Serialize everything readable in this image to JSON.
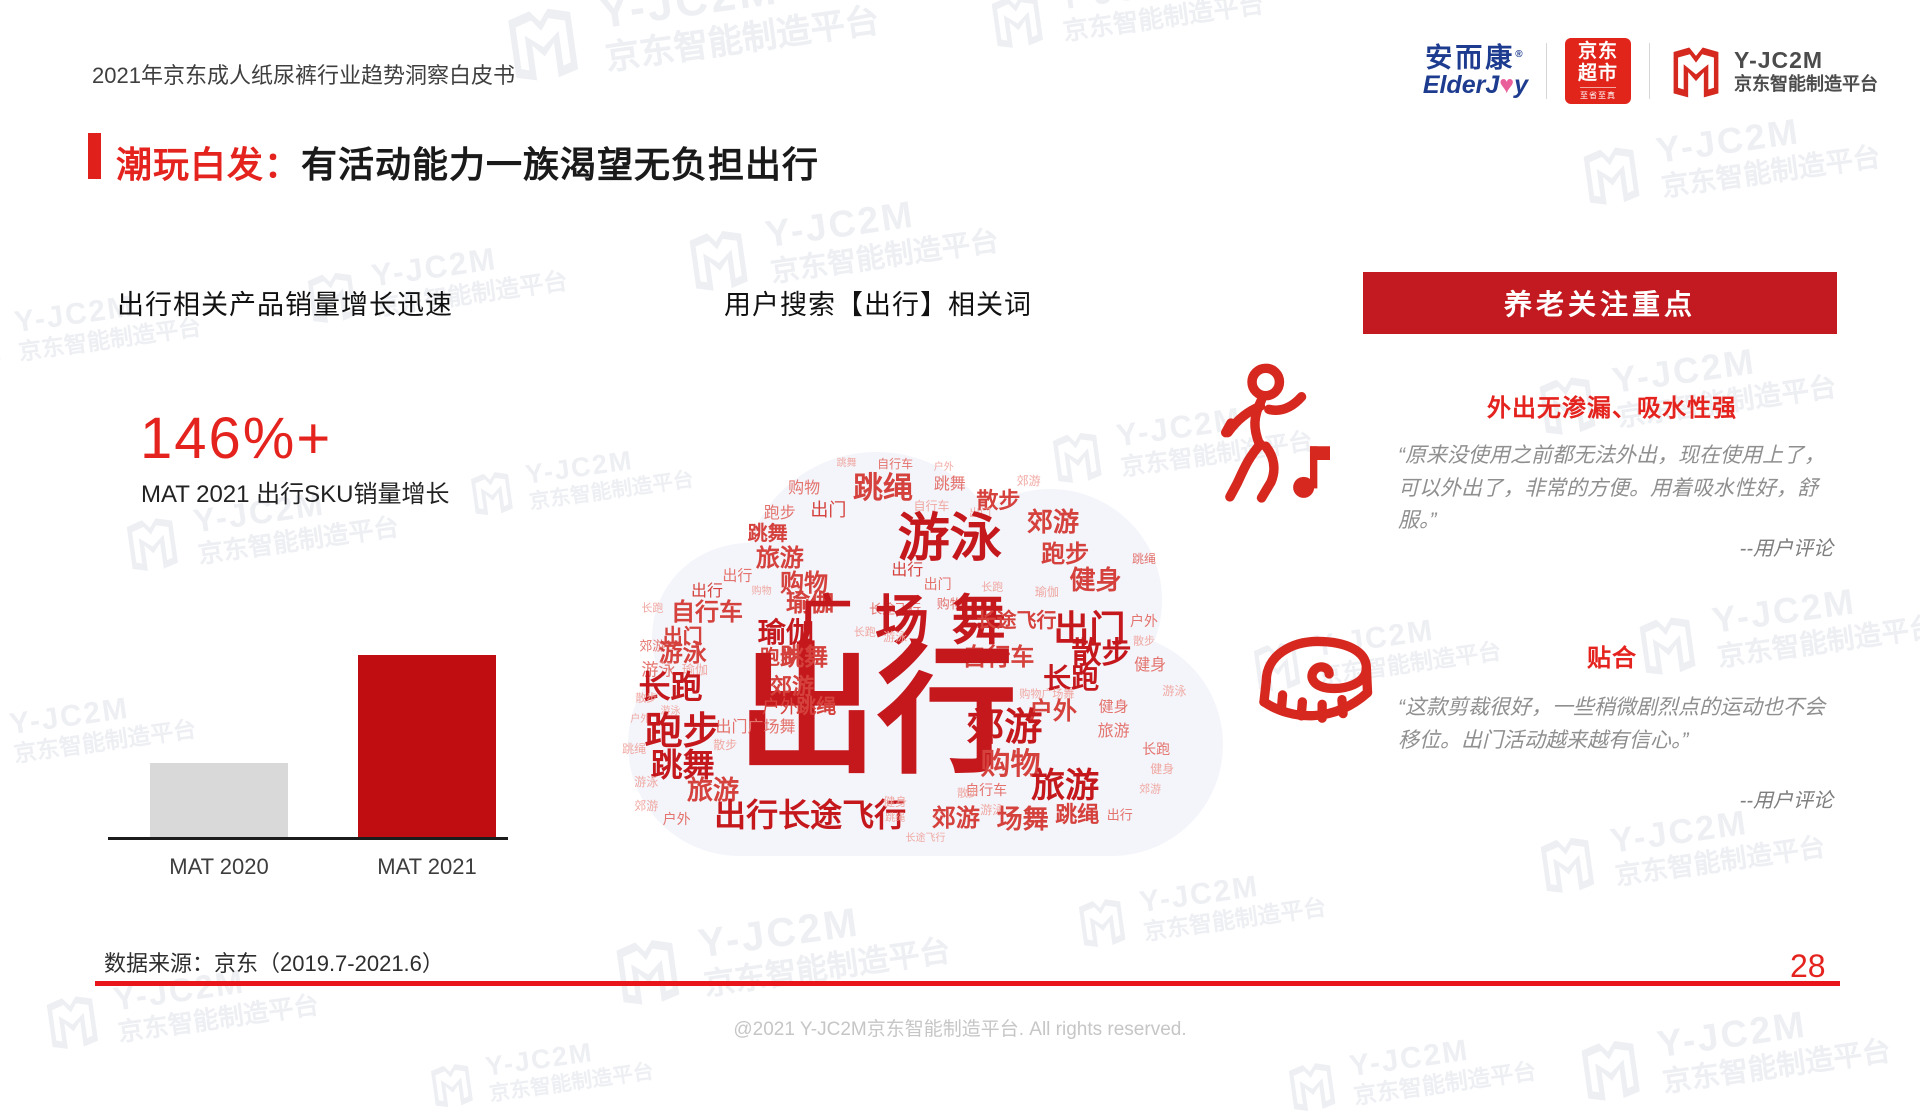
{
  "header": {
    "doc_title": "2021年京东成人纸尿裤行业趋势洞察白皮书"
  },
  "logos": {
    "elderjoy": {
      "cn": "安而康",
      "reg": "®",
      "en_left": "ElderJ",
      "en_heart": "♥",
      "en_right": "y"
    },
    "jd_market": {
      "line1": "京东",
      "line2": "超市",
      "slogan": "至省至真"
    },
    "yjc2m": {
      "name": "Y-JC2M",
      "subtitle": "京东智能制造平台"
    }
  },
  "title": {
    "highlight": "潮玩白发：",
    "rest": "有活动能力一族渴望无负担出行"
  },
  "left_section": {
    "heading": "出行相关产品销量增长迅速",
    "big_number": "146%+",
    "big_number_caption": "MAT 2021 出行SKU销量增长"
  },
  "middle_section": {
    "heading": "用户搜索【出行】相关词"
  },
  "chart_data": [
    {
      "type": "bar",
      "title": "出行SKU销量增长",
      "categories": [
        "MAT 2020",
        "MAT 2021"
      ],
      "values": [
        100,
        246
      ],
      "annotation": "146%+",
      "colors": [
        "#d9d9d9",
        "#c00d12"
      ],
      "ylabel": "",
      "axis": "baseline-only, no gridlines, no value labels"
    },
    {
      "type": "wordcloud",
      "title": "用户搜索【出行】相关词",
      "words": [
        {
          "t": "跳舞",
          "x": 37,
          "y": 3,
          "s": 10,
          "c": 3
        },
        {
          "t": "自行车",
          "x": 45,
          "y": 3,
          "s": 12,
          "c": 2
        },
        {
          "t": "户外",
          "x": 53,
          "y": 4,
          "s": 10,
          "c": 3
        },
        {
          "t": "购物",
          "x": 30,
          "y": 9,
          "s": 16,
          "c": 2
        },
        {
          "t": "跳绳",
          "x": 43,
          "y": 9,
          "s": 30,
          "c": 1
        },
        {
          "t": "跳舞",
          "x": 54,
          "y": 8,
          "s": 16,
          "c": 2
        },
        {
          "t": "散步",
          "x": 62,
          "y": 12,
          "s": 22,
          "c": 1
        },
        {
          "t": "郊游",
          "x": 67,
          "y": 7,
          "s": 12,
          "c": 3
        },
        {
          "t": "跑步",
          "x": 26,
          "y": 15,
          "s": 16,
          "c": 2
        },
        {
          "t": "出门",
          "x": 34,
          "y": 14,
          "s": 18,
          "c": 1
        },
        {
          "t": "自行车",
          "x": 51,
          "y": 13,
          "s": 12,
          "c": 3
        },
        {
          "t": "出门",
          "x": 59,
          "y": 15,
          "s": 11,
          "c": 3
        },
        {
          "t": "郊游",
          "x": 71,
          "y": 17,
          "s": 26,
          "c": 1
        },
        {
          "t": "跳舞",
          "x": 24,
          "y": 20,
          "s": 20,
          "c": 1
        },
        {
          "t": "旅游",
          "x": 26,
          "y": 26,
          "s": 24,
          "c": 1
        },
        {
          "t": "游泳",
          "x": 54,
          "y": 21,
          "s": 52,
          "c": 0
        },
        {
          "t": "跑步",
          "x": 73,
          "y": 25,
          "s": 24,
          "c": 1
        },
        {
          "t": "健身",
          "x": 78,
          "y": 31,
          "s": 26,
          "c": 1
        },
        {
          "t": "跳绳",
          "x": 86,
          "y": 26,
          "s": 12,
          "c": 2
        },
        {
          "t": "出行",
          "x": 19,
          "y": 30,
          "s": 15,
          "c": 2
        },
        {
          "t": "购物",
          "x": 30,
          "y": 32,
          "s": 24,
          "c": 1
        },
        {
          "t": "出行",
          "x": 47,
          "y": 29,
          "s": 16,
          "c": 1
        },
        {
          "t": "出门",
          "x": 52,
          "y": 32,
          "s": 14,
          "c": 2
        },
        {
          "t": "瑜伽",
          "x": 70,
          "y": 34,
          "s": 12,
          "c": 3
        },
        {
          "t": "长跑",
          "x": 61,
          "y": 33,
          "s": 11,
          "c": 3
        },
        {
          "t": "出行",
          "x": 14,
          "y": 34,
          "s": 16,
          "c": 1
        },
        {
          "t": "购物",
          "x": 23,
          "y": 34,
          "s": 10,
          "c": 3
        },
        {
          "t": "自行车",
          "x": 14,
          "y": 39,
          "s": 24,
          "c": 1
        },
        {
          "t": "长跑",
          "x": 5,
          "y": 38,
          "s": 11,
          "c": 3
        },
        {
          "t": "瑜伽",
          "x": 31,
          "y": 37,
          "s": 24,
          "c": 1
        },
        {
          "t": "长途飞行",
          "x": 45,
          "y": 38,
          "s": 13,
          "c": 2
        },
        {
          "t": "购物",
          "x": 54,
          "y": 37,
          "s": 13,
          "c": 2
        },
        {
          "t": "广场舞",
          "x": 48,
          "y": 41,
          "s": 54,
          "c": 0
        },
        {
          "t": "长途飞行",
          "x": 65,
          "y": 41,
          "s": 20,
          "c": 1
        },
        {
          "t": "出门",
          "x": 77,
          "y": 43,
          "s": 36,
          "c": 0
        },
        {
          "t": "户外",
          "x": 86,
          "y": 41,
          "s": 14,
          "c": 2
        },
        {
          "t": "散步",
          "x": 86,
          "y": 46,
          "s": 11,
          "c": 3
        },
        {
          "t": "出门",
          "x": 10,
          "y": 45,
          "s": 20,
          "c": 1
        },
        {
          "t": "郊游",
          "x": 5,
          "y": 47,
          "s": 13,
          "c": 2
        },
        {
          "t": "游泳",
          "x": 10,
          "y": 49,
          "s": 24,
          "c": 1
        },
        {
          "t": "游泳",
          "x": 6,
          "y": 53,
          "s": 17,
          "c": 2
        },
        {
          "t": "瑜伽",
          "x": 12,
          "y": 53,
          "s": 13,
          "c": 3
        },
        {
          "t": "瑜伽",
          "x": 27,
          "y": 44,
          "s": 28,
          "c": 0
        },
        {
          "t": "跑步",
          "x": 26,
          "y": 50,
          "s": 20,
          "c": 1
        },
        {
          "t": "游泳",
          "x": 45,
          "y": 45,
          "s": 12,
          "c": 3
        },
        {
          "t": "长跑",
          "x": 40,
          "y": 44,
          "s": 11,
          "c": 3
        },
        {
          "t": "自行车",
          "x": 62,
          "y": 50,
          "s": 24,
          "c": 1
        },
        {
          "t": "散步",
          "x": 79,
          "y": 49,
          "s": 30,
          "c": 0
        },
        {
          "t": "长跑",
          "x": 74,
          "y": 55,
          "s": 28,
          "c": 0
        },
        {
          "t": "购物广场舞",
          "x": 70,
          "y": 59,
          "s": 11,
          "c": 3
        },
        {
          "t": "健身",
          "x": 87,
          "y": 52,
          "s": 16,
          "c": 2
        },
        {
          "t": "户外",
          "x": 71,
          "y": 63,
          "s": 24,
          "c": 1
        },
        {
          "t": "健身",
          "x": 81,
          "y": 62,
          "s": 15,
          "c": 2
        },
        {
          "t": "出行",
          "x": 42,
          "y": 63,
          "s": 140,
          "c": 0
        },
        {
          "t": "郊游",
          "x": 63,
          "y": 67,
          "s": 38,
          "c": 0
        },
        {
          "t": "购物",
          "x": 64,
          "y": 76,
          "s": 30,
          "c": 1
        },
        {
          "t": "自行车",
          "x": 60,
          "y": 82,
          "s": 14,
          "c": 2
        },
        {
          "t": "旅游",
          "x": 73,
          "y": 81,
          "s": 34,
          "c": 0
        },
        {
          "t": "旅游",
          "x": 81,
          "y": 68,
          "s": 16,
          "c": 2
        },
        {
          "t": "长跑",
          "x": 88,
          "y": 72,
          "s": 14,
          "c": 2
        },
        {
          "t": "健身",
          "x": 89,
          "y": 77,
          "s": 12,
          "c": 3
        },
        {
          "t": "郊游",
          "x": 87,
          "y": 82,
          "s": 11,
          "c": 3
        },
        {
          "t": "游泳",
          "x": 91,
          "y": 58,
          "s": 12,
          "c": 3
        },
        {
          "t": "长跑",
          "x": 8,
          "y": 57,
          "s": 32,
          "c": 0
        },
        {
          "t": "散步",
          "x": 4,
          "y": 60,
          "s": 11,
          "c": 3
        },
        {
          "t": "户外",
          "x": 3,
          "y": 65,
          "s": 10,
          "c": 3
        },
        {
          "t": "游泳",
          "x": 8,
          "y": 63,
          "s": 10,
          "c": 3
        },
        {
          "t": "跑步",
          "x": 10,
          "y": 68,
          "s": 38,
          "c": 0
        },
        {
          "t": "跳绳",
          "x": 2,
          "y": 72,
          "s": 12,
          "c": 3
        },
        {
          "t": "出门广场舞",
          "x": 22,
          "y": 67,
          "s": 16,
          "c": 2
        },
        {
          "t": "散步",
          "x": 17,
          "y": 71,
          "s": 12,
          "c": 3
        },
        {
          "t": "跳舞",
          "x": 10,
          "y": 76,
          "s": 32,
          "c": 0
        },
        {
          "t": "游泳",
          "x": 4,
          "y": 80,
          "s": 12,
          "c": 3
        },
        {
          "t": "旅游",
          "x": 15,
          "y": 82,
          "s": 26,
          "c": 1
        },
        {
          "t": "郊游",
          "x": 4,
          "y": 86,
          "s": 12,
          "c": 3
        },
        {
          "t": "户外",
          "x": 9,
          "y": 89,
          "s": 14,
          "c": 2
        },
        {
          "t": "郊游",
          "x": 28,
          "y": 57,
          "s": 22,
          "c": 1
        },
        {
          "t": "跳舞",
          "x": 30,
          "y": 50,
          "s": 24,
          "c": 1
        },
        {
          "t": "户外",
          "x": 26,
          "y": 62,
          "s": 18,
          "c": 1
        },
        {
          "t": "跳绳",
          "x": 32,
          "y": 62,
          "s": 20,
          "c": 1
        },
        {
          "t": "出行长途飞行",
          "x": 31,
          "y": 88,
          "s": 32,
          "c": 0
        },
        {
          "t": "健身",
          "x": 45,
          "y": 85,
          "s": 12,
          "c": 3
        },
        {
          "t": "跳绳",
          "x": 45,
          "y": 89,
          "s": 10,
          "c": 3
        },
        {
          "t": "郊游",
          "x": 55,
          "y": 89,
          "s": 24,
          "c": 1
        },
        {
          "t": "游泳",
          "x": 61,
          "y": 87,
          "s": 12,
          "c": 3
        },
        {
          "t": "场舞",
          "x": 66,
          "y": 89,
          "s": 26,
          "c": 1
        },
        {
          "t": "跳绳",
          "x": 75,
          "y": 88,
          "s": 22,
          "c": 1
        },
        {
          "t": "出行",
          "x": 82,
          "y": 88,
          "s": 13,
          "c": 2
        },
        {
          "t": "长途飞行",
          "x": 50,
          "y": 94,
          "s": 10,
          "c": 3
        },
        {
          "t": "散步",
          "x": 57,
          "y": 83,
          "s": 11,
          "c": 3
        }
      ]
    }
  ],
  "right_section": {
    "banner": "养老关注重点",
    "items": [
      {
        "icon": "dancing-person-icon",
        "heading": "外出无渗漏、吸水性强",
        "quote": "“原来没使用之前都无法外出，现在使用上了，可以外出了，非常的方便。用着吸水性好，舒服。”",
        "attribution": "--用户评论"
      },
      {
        "icon": "tape-measure-icon",
        "heading": "贴合",
        "quote": "“这款剪裁很好，一些稍微剧烈点的运动也不会移位。出门活动越来越有信心。”",
        "attribution": "--用户评论"
      }
    ]
  },
  "footer": {
    "source": "数据来源：京东（2019.7-2021.6）",
    "page_number": "28",
    "copyright": "@2021 Y-JC2M京东智能制造平台. All rights reserved."
  },
  "watermark": {
    "line1": "Y-JC2M",
    "line2": "京东智能制造平台"
  },
  "colors": {
    "accent_red": "#e5231e",
    "banner_red": "#c31920",
    "bar_red": "#c00d12",
    "bar_gray": "#d9d9d9",
    "logo_blue": "#1e3c8f",
    "cloud_bg": "#f3f5fb",
    "cloud_tiers": [
      "#c4181d",
      "#d5413c",
      "#e4736d",
      "#f0a8a2"
    ]
  }
}
